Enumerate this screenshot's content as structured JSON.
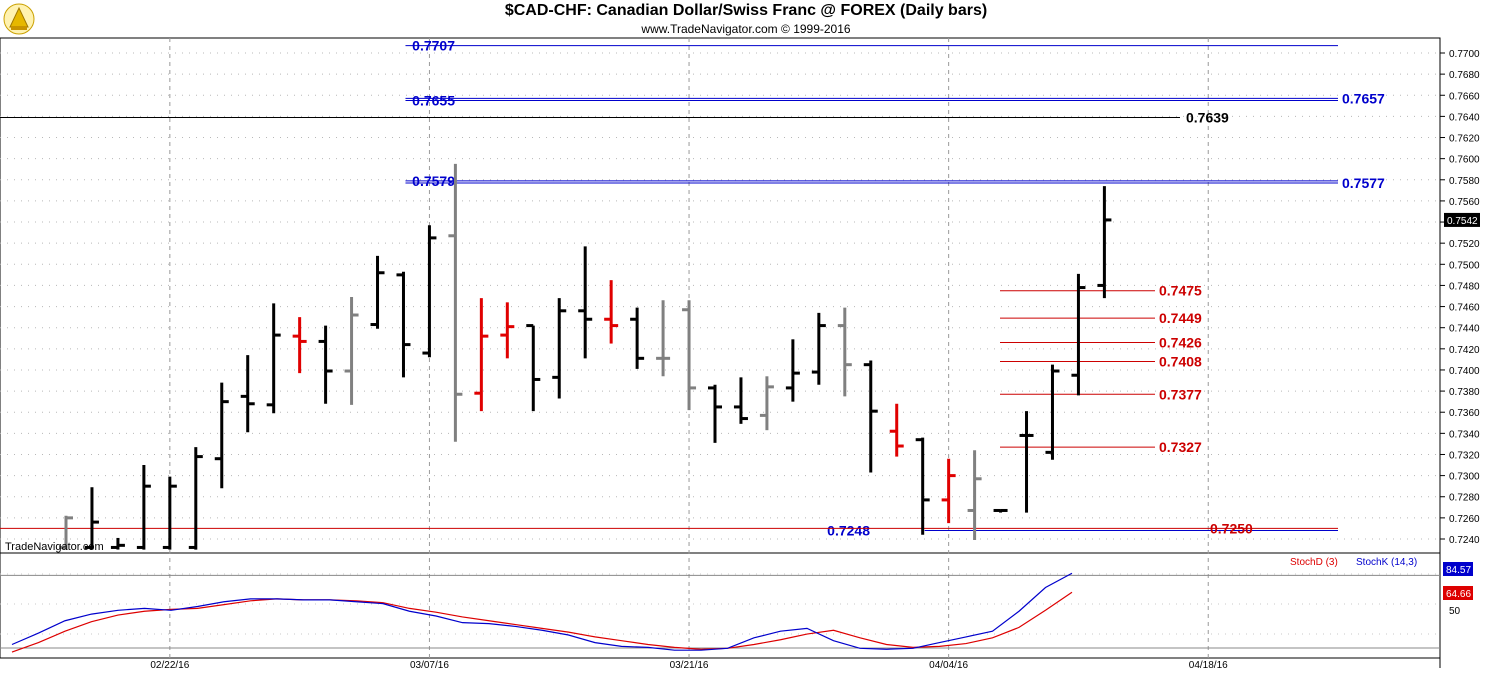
{
  "header": {
    "title": "$CAD-CHF:  Canadian Dollar/Swiss Franc @ FOREX  (Daily bars)",
    "subtitle": "www.TradeNavigator.com © 1999-2016",
    "watermark": "TradeNavigator.com"
  },
  "colors": {
    "up_bar": "#000000",
    "down_bar": "#e00000",
    "neutral_bar": "#808080",
    "level_blue": "#0000cc",
    "level_red": "#cc0000",
    "stoch_k": "#0000cc",
    "stoch_d": "#dd0000"
  },
  "chart_data": {
    "type": "ohlc",
    "price_axis": {
      "min": 0.723,
      "max": 0.77,
      "ticks": [
        "0.7700",
        "0.7680",
        "0.7660",
        "0.7640",
        "0.7620",
        "0.7600",
        "0.7580",
        "0.7560",
        "0.7540",
        "0.7520",
        "0.7500",
        "0.7480",
        "0.7460",
        "0.7440",
        "0.7420",
        "0.7400",
        "0.7380",
        "0.7360",
        "0.7340",
        "0.7320",
        "0.7300",
        "0.7280",
        "0.7260",
        "0.7240"
      ],
      "tick_values": [
        0.77,
        0.768,
        0.766,
        0.764,
        0.762,
        0.76,
        0.758,
        0.756,
        0.754,
        0.752,
        0.75,
        0.748,
        0.746,
        0.744,
        0.742,
        0.74,
        0.738,
        0.736,
        0.734,
        0.732,
        0.73,
        0.728,
        0.726,
        0.724
      ],
      "last_price": "0.7542",
      "last_price_value": 0.7542
    },
    "date_labels": [
      {
        "label": "02/22/16",
        "bar": 4
      },
      {
        "label": "03/07/16",
        "bar": 14
      },
      {
        "label": "03/21/16",
        "bar": 24
      },
      {
        "label": "04/04/16",
        "bar": 34
      },
      {
        "label": "04/18/16",
        "bar": 44
      }
    ],
    "bars": [
      {
        "o": 0.7232,
        "h": 0.7262,
        "l": 0.723,
        "c": 0.726,
        "k": "n"
      },
      {
        "o": 0.7232,
        "h": 0.7289,
        "l": 0.723,
        "c": 0.7256,
        "k": "u"
      },
      {
        "o": 0.7232,
        "h": 0.7241,
        "l": 0.723,
        "c": 0.7234,
        "k": "u"
      },
      {
        "o": 0.7232,
        "h": 0.731,
        "l": 0.723,
        "c": 0.729,
        "k": "u"
      },
      {
        "o": 0.7232,
        "h": 0.7299,
        "l": 0.723,
        "c": 0.729,
        "k": "u"
      },
      {
        "o": 0.7232,
        "h": 0.7327,
        "l": 0.723,
        "c": 0.7318,
        "k": "u"
      },
      {
        "o": 0.7316,
        "h": 0.7388,
        "l": 0.7288,
        "c": 0.737,
        "k": "u"
      },
      {
        "o": 0.7375,
        "h": 0.7414,
        "l": 0.7341,
        "c": 0.7368,
        "k": "u"
      },
      {
        "o": 0.7367,
        "h": 0.7463,
        "l": 0.7359,
        "c": 0.7433,
        "k": "u"
      },
      {
        "o": 0.7432,
        "h": 0.745,
        "l": 0.7397,
        "c": 0.7427,
        "k": "d"
      },
      {
        "o": 0.7427,
        "h": 0.7442,
        "l": 0.7368,
        "c": 0.7399,
        "k": "u"
      },
      {
        "o": 0.7399,
        "h": 0.7469,
        "l": 0.7367,
        "c": 0.7452,
        "k": "n"
      },
      {
        "o": 0.7443,
        "h": 0.7508,
        "l": 0.7439,
        "c": 0.7492,
        "k": "u"
      },
      {
        "o": 0.749,
        "h": 0.7493,
        "l": 0.7393,
        "c": 0.7424,
        "k": "u"
      },
      {
        "o": 0.7416,
        "h": 0.7537,
        "l": 0.7412,
        "c": 0.7525,
        "k": "u"
      },
      {
        "o": 0.7527,
        "h": 0.7595,
        "l": 0.7332,
        "c": 0.7377,
        "k": "n"
      },
      {
        "o": 0.7378,
        "h": 0.7468,
        "l": 0.7361,
        "c": 0.7432,
        "k": "d"
      },
      {
        "o": 0.7433,
        "h": 0.7464,
        "l": 0.7411,
        "c": 0.7441,
        "k": "d"
      },
      {
        "o": 0.7442,
        "h": 0.7442,
        "l": 0.7361,
        "c": 0.7391,
        "k": "u"
      },
      {
        "o": 0.7393,
        "h": 0.7468,
        "l": 0.7373,
        "c": 0.7456,
        "k": "u"
      },
      {
        "o": 0.7456,
        "h": 0.7517,
        "l": 0.7411,
        "c": 0.7448,
        "k": "u"
      },
      {
        "o": 0.7448,
        "h": 0.7485,
        "l": 0.7425,
        "c": 0.7442,
        "k": "d"
      },
      {
        "o": 0.7448,
        "h": 0.7459,
        "l": 0.7401,
        "c": 0.7411,
        "k": "u"
      },
      {
        "o": 0.7411,
        "h": 0.7466,
        "l": 0.7394,
        "c": 0.7411,
        "k": "n"
      },
      {
        "o": 0.7457,
        "h": 0.7466,
        "l": 0.7362,
        "c": 0.7383,
        "k": "n"
      },
      {
        "o": 0.7383,
        "h": 0.7386,
        "l": 0.7331,
        "c": 0.7365,
        "k": "u"
      },
      {
        "o": 0.7365,
        "h": 0.7393,
        "l": 0.7349,
        "c": 0.7354,
        "k": "u"
      },
      {
        "o": 0.7357,
        "h": 0.7394,
        "l": 0.7343,
        "c": 0.7384,
        "k": "n"
      },
      {
        "o": 0.7383,
        "h": 0.7429,
        "l": 0.737,
        "c": 0.7397,
        "k": "u"
      },
      {
        "o": 0.7398,
        "h": 0.7454,
        "l": 0.7386,
        "c": 0.7442,
        "k": "u"
      },
      {
        "o": 0.7442,
        "h": 0.7459,
        "l": 0.7375,
        "c": 0.7405,
        "k": "n"
      },
      {
        "o": 0.7405,
        "h": 0.7409,
        "l": 0.7303,
        "c": 0.7361,
        "k": "u"
      },
      {
        "o": 0.7342,
        "h": 0.7368,
        "l": 0.7318,
        "c": 0.7328,
        "k": "d"
      },
      {
        "o": 0.7334,
        "h": 0.7336,
        "l": 0.7244,
        "c": 0.7277,
        "k": "u"
      },
      {
        "o": 0.7277,
        "h": 0.7316,
        "l": 0.7255,
        "c": 0.73,
        "k": "d"
      },
      {
        "o": 0.7267,
        "h": 0.7324,
        "l": 0.7239,
        "c": 0.7297,
        "k": "n"
      },
      {
        "o": 0.7267,
        "h": 0.7267,
        "l": 0.7265,
        "c": 0.7267,
        "k": "u"
      },
      {
        "o": 0.7338,
        "h": 0.7361,
        "l": 0.7265,
        "c": 0.7338,
        "k": "u"
      },
      {
        "o": 0.7322,
        "h": 0.7405,
        "l": 0.7315,
        "c": 0.7399,
        "k": "u"
      },
      {
        "o": 0.7395,
        "h": 0.7491,
        "l": 0.7376,
        "c": 0.7478,
        "k": "u"
      },
      {
        "o": 0.748,
        "h": 0.7574,
        "l": 0.7468,
        "c": 0.7542,
        "k": "u"
      }
    ],
    "levels": [
      {
        "value": 0.7707,
        "label": "0.7707",
        "side": "left",
        "color": "blue",
        "x_from_bar": 13
      },
      {
        "value": 0.7655,
        "label": "0.7655",
        "side": "left",
        "color": "blue",
        "x_from_bar": 13
      },
      {
        "value": 0.7657,
        "label": "0.7657",
        "side": "right",
        "color": "blue",
        "x_from_bar": 13
      },
      {
        "value": 0.7639,
        "label": "0.7639",
        "side": "right",
        "color": "black",
        "x_from_bar": -5,
        "full": true
      },
      {
        "value": 0.7579,
        "label": "0.7579",
        "side": "left",
        "color": "blue",
        "x_from_bar": 13
      },
      {
        "value": 0.7577,
        "label": "0.7577",
        "side": "right",
        "color": "blue",
        "x_from_bar": 13
      },
      {
        "value": 0.7248,
        "label": "0.7248",
        "side": "left",
        "color": "blue",
        "x_from_bar": 33
      },
      {
        "value": 0.725,
        "label": "0.7250",
        "side": "right",
        "color": "red",
        "x_from_bar": -5,
        "full": true
      }
    ],
    "fib_levels": [
      {
        "value": 0.7475,
        "label": "0.7475"
      },
      {
        "value": 0.7449,
        "label": "0.7449"
      },
      {
        "value": 0.7426,
        "label": "0.7426"
      },
      {
        "value": 0.7408,
        "label": "0.7408"
      },
      {
        "value": 0.7377,
        "label": "0.7377"
      },
      {
        "value": 0.7327,
        "label": "0.7327"
      }
    ],
    "stochastic": {
      "legend_d": "StochD (3)",
      "legend_k": "StochK (14,3)",
      "value_k": "84.57",
      "value_d": "64.66",
      "mid_label": "50",
      "k_value": 84.57,
      "d_value": 64.66,
      "k": [
        10,
        22,
        35,
        42,
        46,
        48,
        46,
        50,
        55,
        58,
        58,
        57,
        57,
        55,
        53,
        45,
        40,
        33,
        32,
        29,
        25,
        20,
        12,
        8,
        7,
        4,
        4,
        6,
        17,
        24,
        27,
        14,
        6,
        5,
        6,
        12,
        18,
        24,
        45,
        70,
        85
      ],
      "d": [
        2,
        12,
        24,
        34,
        41,
        45,
        47,
        48,
        52,
        56,
        58,
        57,
        57,
        56,
        54,
        48,
        44,
        39,
        35,
        31,
        27,
        23,
        18,
        14,
        10,
        7,
        5,
        6,
        10,
        15,
        21,
        25,
        17,
        10,
        7,
        8,
        11,
        17,
        28,
        46,
        65
      ]
    }
  }
}
